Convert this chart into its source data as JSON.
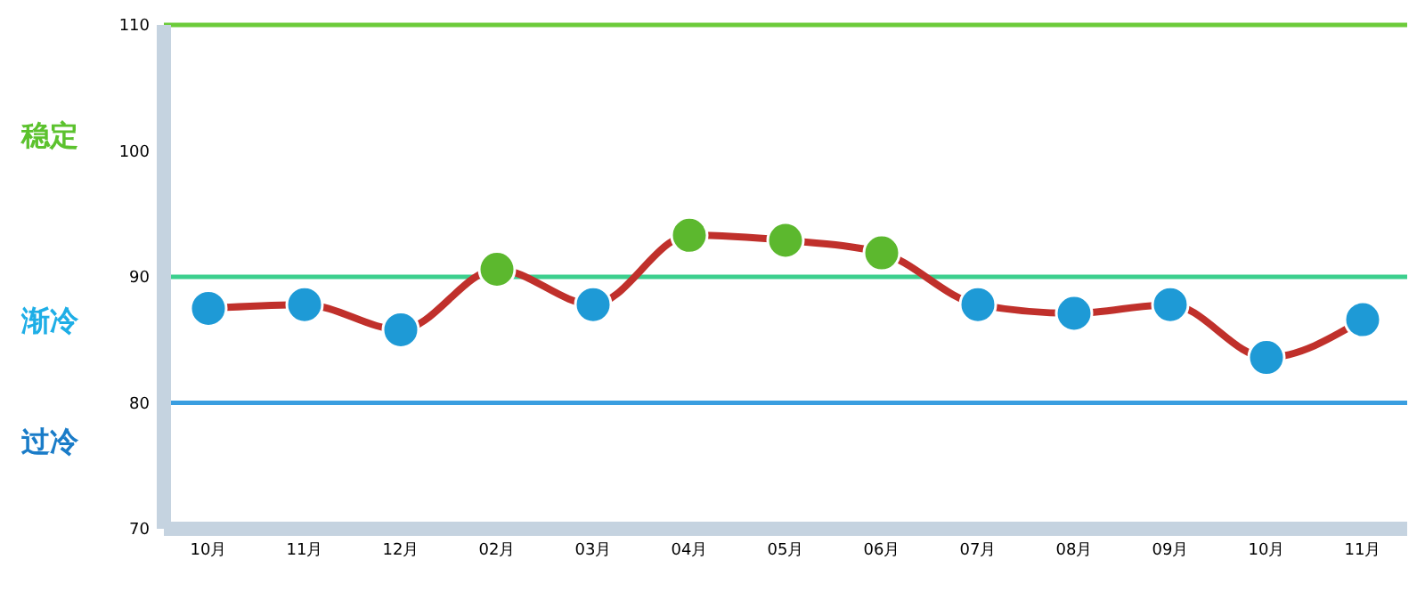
{
  "chart_data": {
    "type": "line",
    "categories": [
      "10月",
      "11月",
      "12月",
      "02月",
      "03月",
      "04月",
      "05月",
      "06月",
      "07月",
      "08月",
      "09月",
      "10月",
      "11月"
    ],
    "series": [
      {
        "color": "#c0302b",
        "values": [
          87.5,
          87.8,
          85.8,
          90.6,
          87.8,
          93.3,
          92.9,
          91.9,
          87.8,
          87.1,
          87.8,
          83.6,
          86.6
        ],
        "colors": [
          "#1e9ad6",
          "#1e9ad6",
          "#1e9ad6",
          "#5cb82e",
          "#1e9ad6",
          "#5cb82e",
          "#5cb82e",
          "#5cb82e",
          "#1e9ad6",
          "#1e9ad6",
          "#1e9ad6",
          "#1e9ad6",
          "#1e9ad6"
        ]
      }
    ],
    "ylim": [
      70,
      110
    ],
    "yticks": [
      70,
      80,
      90,
      100,
      110
    ],
    "ref_lines": [
      {
        "axis": "y",
        "value": 110,
        "color": "#6ccb3a"
      },
      {
        "axis": "y",
        "value": 90,
        "color": "#3ccf8e"
      },
      {
        "axis": "y",
        "value": 80,
        "color": "#3a9ee0"
      }
    ],
    "annotations": [
      "稳定",
      "渐冷",
      "过冷"
    ],
    "marker": "circle",
    "line_style": "solid"
  }
}
